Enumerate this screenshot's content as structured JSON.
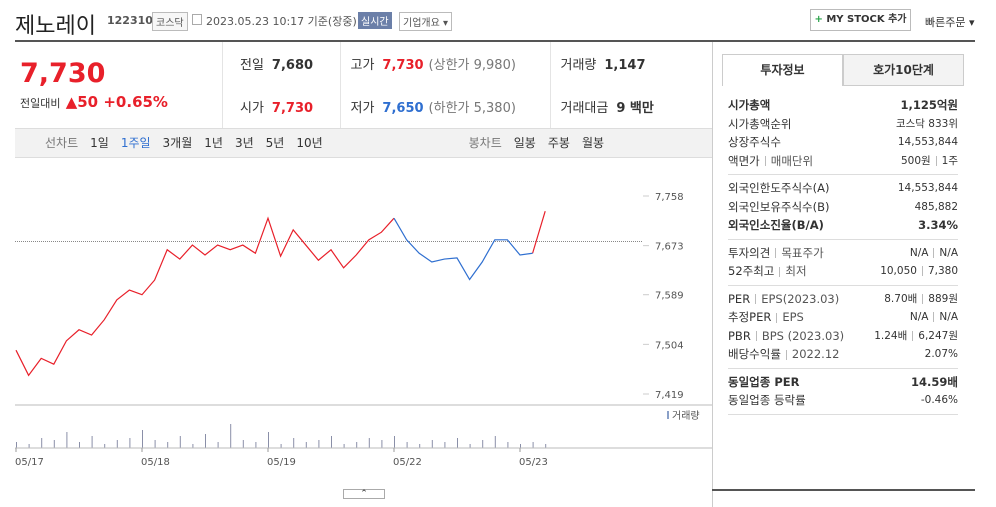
{
  "header": {
    "title": "제노레이",
    "code": "122310",
    "market": "코스닥",
    "timestamp": "2023.05.23 10:17 기준(장중)",
    "realtime": "실시간",
    "company_menu": "기업개요",
    "my_stock": "MY STOCK 추가",
    "quick_order": "빠른주문"
  },
  "price": {
    "current": "7,730",
    "change_label": "전일대비",
    "change": "50",
    "change_rate": "+0.65%"
  },
  "summary": [
    [
      {
        "label": "전일",
        "value": "7,680"
      },
      {
        "label": "고가",
        "value": "7,730",
        "note": "(상한가 9,980)"
      },
      {
        "label": "거래량",
        "value": "1,147"
      }
    ],
    [
      {
        "label": "시가",
        "value": "7,730"
      },
      {
        "label": "저가",
        "value": "7,650",
        "note": "(하한가 5,380)"
      },
      {
        "label": "거래대금",
        "value": "9 백만"
      }
    ]
  ],
  "chart_tabs": {
    "line_label": "선차트",
    "periods": [
      "1일",
      "1주일",
      "3개월",
      "1년",
      "3년",
      "5년",
      "10년"
    ],
    "active": 1,
    "candle_label": "봉차트",
    "candles": [
      "일봉",
      "주봉",
      "월봉"
    ]
  },
  "chart_data": {
    "type": "line",
    "categories": [
      "05/17",
      null,
      null,
      null,
      null,
      null,
      null,
      null,
      null,
      null,
      "05/18",
      null,
      null,
      null,
      null,
      null,
      null,
      null,
      null,
      null,
      "05/19",
      null,
      null,
      null,
      null,
      null,
      null,
      null,
      null,
      null,
      "05/22",
      null,
      null,
      null,
      null,
      null,
      null,
      null,
      null,
      null,
      "05/23",
      null,
      null
    ],
    "series": [
      {
        "color": "#e8202a",
        "values": [
          7494,
          7451,
          7480,
          7470,
          7510,
          7529,
          7520,
          7546,
          7580,
          7597,
          7589,
          7614,
          7666,
          7650,
          7674,
          7657,
          7674,
          7666,
          7674,
          7660,
          7720,
          7655,
          7700,
          7674,
          7648,
          7666,
          7635,
          7657,
          7683,
          7696,
          7720,
          null,
          null,
          null,
          null,
          null,
          null,
          null,
          null,
          null,
          null,
          7660,
          7732
        ]
      },
      {
        "color": "#2f6fd0",
        "values": [
          null,
          null,
          null,
          null,
          null,
          null,
          null,
          null,
          null,
          null,
          null,
          null,
          null,
          null,
          null,
          null,
          null,
          null,
          null,
          null,
          null,
          null,
          null,
          null,
          null,
          null,
          null,
          null,
          null,
          null,
          7720,
          7683,
          7660,
          7645,
          7650,
          7652,
          7615,
          7645,
          7683,
          7683,
          7657,
          7660,
          null
        ]
      }
    ],
    "reference_line": 7680,
    "ylim": [
      7419,
      7758
    ],
    "yticks": [
      {
        "value": 7419,
        "label": "7,419"
      },
      {
        "value": 7504,
        "label": "7,504"
      },
      {
        "value": 7589,
        "label": "7,589"
      },
      {
        "value": 7673,
        "label": "7,673"
      },
      {
        "value": 7758,
        "label": "7,758"
      }
    ],
    "volume_label": "거래량",
    "volume": [
      3,
      2,
      5,
      4,
      8,
      3,
      6,
      2,
      4,
      5,
      9,
      4,
      3,
      6,
      2,
      7,
      3,
      12,
      4,
      3,
      8,
      2,
      5,
      3,
      4,
      6,
      2,
      3,
      5,
      4,
      6,
      3,
      2,
      4,
      3,
      5,
      2,
      4,
      6,
      3,
      2,
      3,
      2
    ]
  },
  "info_tabs": [
    "투자정보",
    "호가10단계"
  ],
  "info": [
    [
      {
        "label": [
          "시가총액"
        ],
        "value": [
          "1,125억원"
        ],
        "bold": true
      },
      {
        "label": [
          "시가총액순위"
        ],
        "value": [
          "코스닥 833위"
        ]
      },
      {
        "label": [
          "상장주식수"
        ],
        "value": [
          "14,553,844"
        ]
      },
      {
        "label": [
          "액면가",
          "매매단위"
        ],
        "value": [
          "500원",
          "1주"
        ]
      }
    ],
    [
      {
        "label": [
          "외국인한도주식수(A)"
        ],
        "value": [
          "14,553,844"
        ]
      },
      {
        "label": [
          "외국인보유주식수(B)"
        ],
        "value": [
          "485,882"
        ]
      },
      {
        "label": [
          "외국인소진율(B/A)"
        ],
        "value": [
          "3.34%"
        ],
        "bold": true
      }
    ],
    [
      {
        "label": [
          "투자의견",
          "목표주가"
        ],
        "value": [
          "N/A",
          "N/A"
        ]
      },
      {
        "label": [
          "52주최고",
          "최저"
        ],
        "value": [
          "10,050",
          "7,380"
        ]
      }
    ],
    [
      {
        "label": [
          "PER",
          "EPS(2023.03)"
        ],
        "value": [
          "8.70배",
          "889원"
        ]
      },
      {
        "label": [
          "추정PER",
          "EPS"
        ],
        "value": [
          "N/A",
          "N/A"
        ]
      },
      {
        "label": [
          "PBR",
          "BPS (2023.03)"
        ],
        "value": [
          "1.24배",
          "6,247원"
        ]
      },
      {
        "label": [
          "배당수익률",
          "2022.12"
        ],
        "value": [
          "2.07%"
        ]
      }
    ],
    [
      {
        "label": [
          "동일업종 PER"
        ],
        "value": [
          "14.59배"
        ],
        "bold": true
      },
      {
        "label": [
          "동일업종 등락률"
        ],
        "value": [
          "-0.46%"
        ],
        "blue": true
      }
    ]
  ]
}
